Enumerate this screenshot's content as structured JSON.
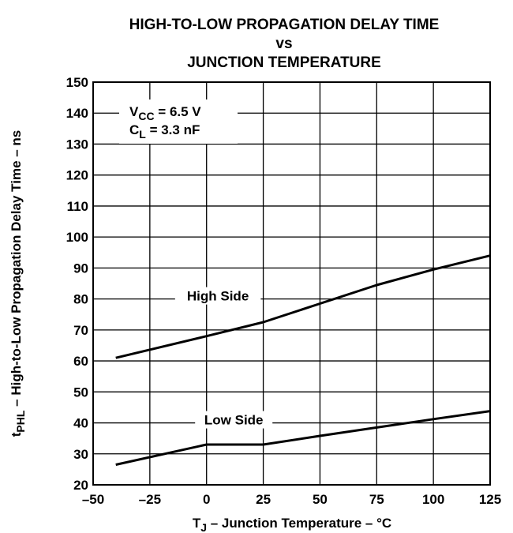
{
  "chart_data": {
    "type": "line",
    "title": [
      "HIGH-TO-LOW PROPAGATION DELAY TIME",
      "vs",
      "JUNCTION TEMPERATURE"
    ],
    "xlabel": {
      "parts": [
        {
          "text": "T",
          "sub": false
        },
        {
          "text": "J",
          "sub": true
        },
        {
          "text": " – Junction Temperature – °C",
          "sub": false
        }
      ]
    },
    "ylabel": {
      "parts": [
        {
          "text": "t",
          "sub": false
        },
        {
          "text": "PHL",
          "sub": true
        },
        {
          "text": "  – High-to-Low Propagation Delay Time – ns",
          "sub": false
        }
      ]
    },
    "xlim": [
      -50,
      125
    ],
    "ylim": [
      20,
      150
    ],
    "xticks": [
      -50,
      -25,
      0,
      25,
      50,
      75,
      100,
      125
    ],
    "xtick_labels": [
      "–50",
      "–25",
      "0",
      "25",
      "50",
      "75",
      "100",
      "125"
    ],
    "yticks": [
      20,
      30,
      40,
      50,
      60,
      70,
      80,
      90,
      100,
      110,
      120,
      130,
      140,
      150
    ],
    "ytick_labels": [
      "20",
      "30",
      "40",
      "50",
      "60",
      "70",
      "80",
      "90",
      "100",
      "110",
      "120",
      "130",
      "140",
      "150"
    ],
    "grid": true,
    "series": [
      {
        "name": "High Side",
        "x": [
          -40,
          0,
          25,
          50,
          75,
          100,
          125
        ],
        "y": [
          61,
          68,
          72.5,
          78.5,
          84.5,
          89.5,
          94
        ]
      },
      {
        "name": "Low Side",
        "x": [
          -40,
          0,
          25,
          50,
          75,
          100,
          125
        ],
        "y": [
          26.5,
          33,
          33,
          35.8,
          38.5,
          41.2,
          43.8
        ]
      }
    ],
    "series_labels": [
      {
        "series": 0,
        "text": "High Side",
        "at": [
          5,
          80
        ]
      },
      {
        "series": 1,
        "text": "Low Side",
        "at": [
          12,
          40
        ]
      }
    ],
    "conditions": [
      {
        "parts": [
          {
            "text": "V",
            "sub": false
          },
          {
            "text": "CC",
            "sub": true
          },
          {
            "text": " = 6.5 V",
            "sub": false
          }
        ]
      },
      {
        "parts": [
          {
            "text": "C",
            "sub": false
          },
          {
            "text": "L",
            "sub": true
          },
          {
            "text": " = 3.3 nF",
            "sub": false
          }
        ]
      }
    ],
    "colors": {
      "line": "#000000",
      "grid": "#000000",
      "background": "#ffffff"
    }
  }
}
